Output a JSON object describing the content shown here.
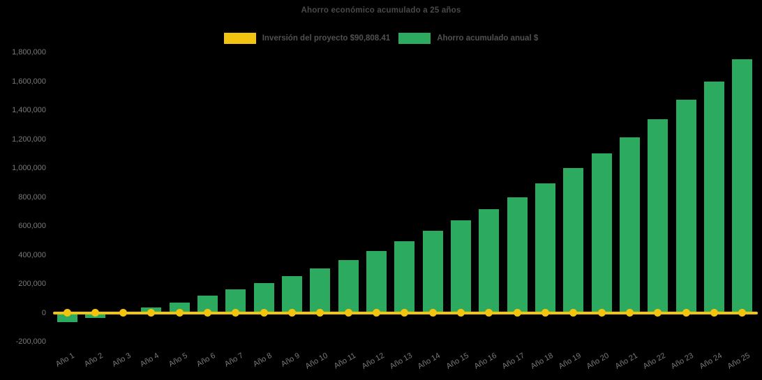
{
  "title": "Ahorro económico acumulado a 25 años",
  "colors": {
    "background": "#000000",
    "bar_green": "#2baa60",
    "line_yellow": "#f2c40f",
    "title_text": "#4a4a4a",
    "legend_text": "#515151",
    "tick_text": "#7a7a7a"
  },
  "legend": {
    "items": [
      {
        "label": "Inversión del proyecto $90,808.41",
        "color": "#f2c40f",
        "series": "line"
      },
      {
        "label": "Ahorro acumulado anual $",
        "color": "#2baa60",
        "series": "bar"
      }
    ]
  },
  "chart_data": {
    "type": "bar",
    "title": "Ahorro económico acumulado a 25 años",
    "categories": [
      "Año 1",
      "Año 2",
      "Año 3",
      "Año 4",
      "Año 5",
      "Año 6",
      "Año 7",
      "Año 8",
      "Año 9",
      "Año 10",
      "Año 11",
      "Año 12",
      "Año 13",
      "Año 14",
      "Año 15",
      "Año 16",
      "Año 17",
      "Año 18",
      "Año 19",
      "Año 20",
      "Año 21",
      "Año 22",
      "Año 23",
      "Año 24",
      "Año 25"
    ],
    "series": [
      {
        "name": "Ahorro acumulado anual $",
        "type": "bar",
        "color": "#2baa60",
        "values": [
          -63000,
          -37000,
          -3000,
          34000,
          72000,
          120000,
          163000,
          207000,
          255000,
          305000,
          362000,
          428000,
          492000,
          567000,
          640000,
          715000,
          800000,
          895000,
          1000000,
          1100000,
          1210000,
          1335000,
          1470000,
          1600000,
          1750000
        ]
      },
      {
        "name": "Inversión del proyecto $90,808.41",
        "type": "line",
        "color": "#f2c40f",
        "values": [
          0,
          0,
          0,
          0,
          0,
          0,
          0,
          0,
          0,
          0,
          0,
          0,
          0,
          0,
          0,
          0,
          0,
          0,
          0,
          0,
          0,
          0,
          0,
          0,
          0
        ]
      }
    ],
    "xlabel": "",
    "ylabel": "",
    "ylim": [
      -200000,
      1800000
    ],
    "y_tick_step": 200000,
    "y_tick_labels": [
      "-200,000",
      "0",
      "200,000",
      "400,000",
      "600,000",
      "800,000",
      "1,000,000",
      "1,200,000",
      "1,400,000",
      "1,600,000",
      "1,800,000"
    ],
    "grid": false,
    "legend_position": "top-center",
    "x_tick_rotation_deg": -30
  }
}
